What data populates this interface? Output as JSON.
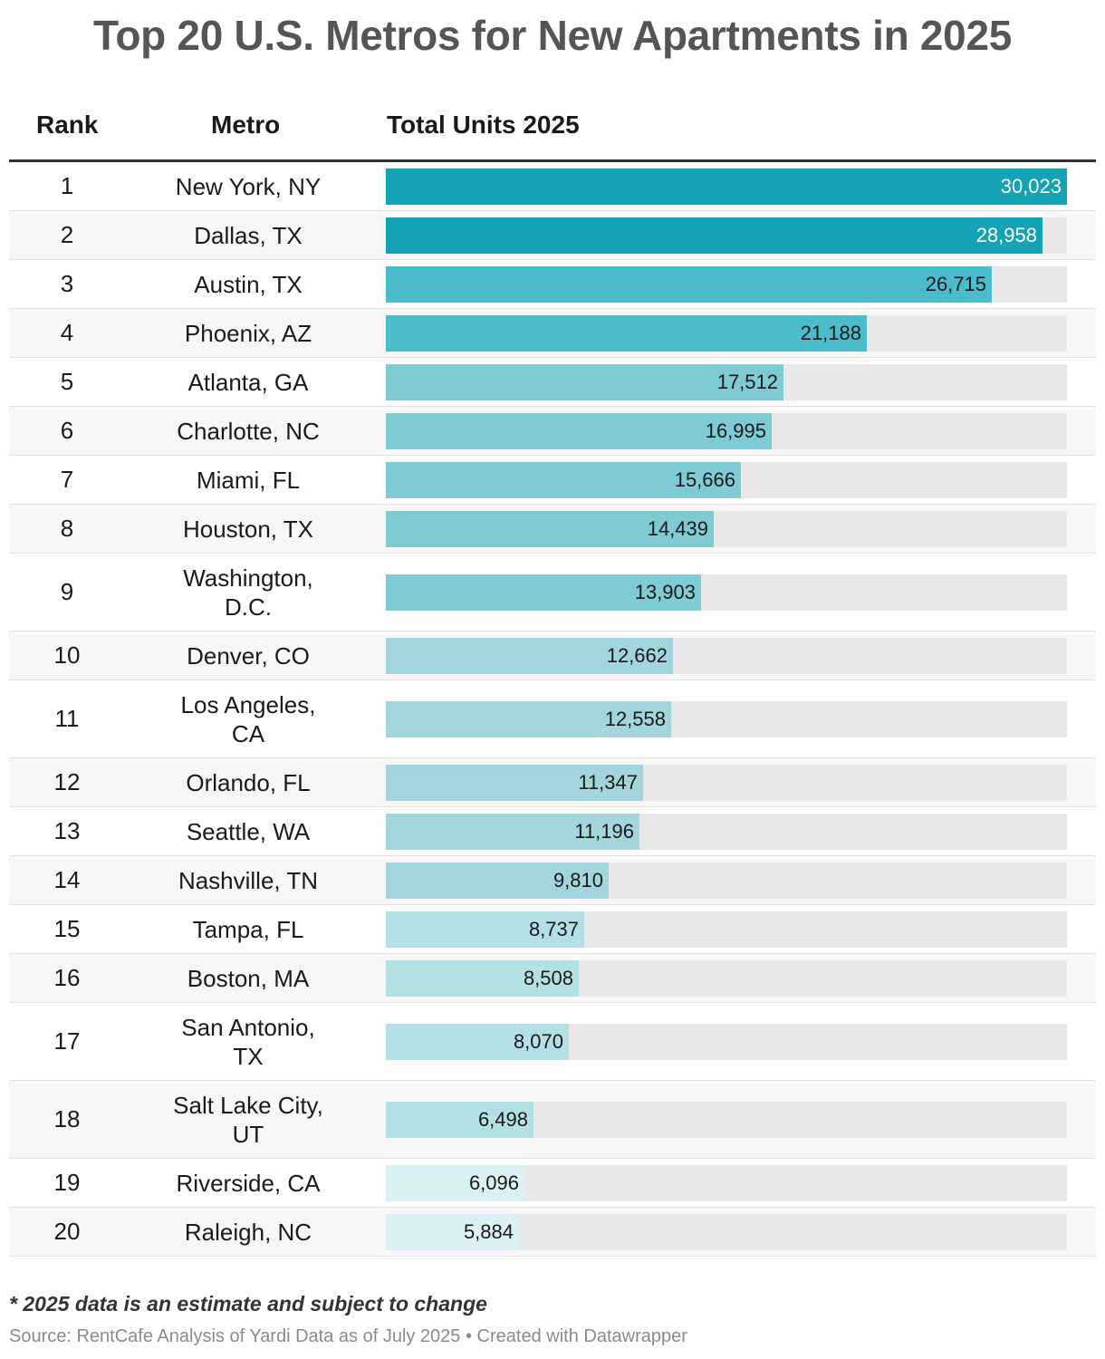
{
  "title": "Top 20 U.S. Metros for New Apartments in 2025",
  "columns": {
    "rank": "Rank",
    "metro": "Metro",
    "units": "Total Units 2025"
  },
  "footnote": "* 2025 data is an estimate and subject to change",
  "source": "Source: RentCafe Analysis of Yardi Data as of July 2025 • Created with Datawrapper",
  "colors": {
    "track": "#e8e8e8",
    "tier1": "#13a3b4",
    "tier2": "#4bbccb",
    "tier3": "#7ecbd4",
    "tier4": "#a3d6dc",
    "tier5": "#b3e0e4",
    "tier6": "#daf0f2"
  },
  "chart_data": {
    "type": "bar",
    "title": "Top 20 U.S. Metros for New Apartments in 2025",
    "xlabel": "Total Units 2025",
    "ylabel": "",
    "xlim": [
      0,
      30023
    ],
    "categories": [
      "New York, NY",
      "Dallas, TX",
      "Austin, TX",
      "Phoenix, AZ",
      "Atlanta, GA",
      "Charlotte, NC",
      "Miami, FL",
      "Houston, TX",
      "Washington, D.C.",
      "Denver, CO",
      "Los Angeles, CA",
      "Orlando, FL",
      "Seattle, WA",
      "Nashville, TN",
      "Tampa, FL",
      "Boston, MA",
      "San Antonio, TX",
      "Salt Lake City, UT",
      "Riverside, CA",
      "Raleigh, NC"
    ],
    "rows": [
      {
        "rank": "1",
        "metro_lines": [
          "New York, NY"
        ],
        "value": 30023,
        "label": "30,023",
        "tier": "tier1"
      },
      {
        "rank": "2",
        "metro_lines": [
          "Dallas, TX"
        ],
        "value": 28958,
        "label": "28,958",
        "tier": "tier1"
      },
      {
        "rank": "3",
        "metro_lines": [
          "Austin, TX"
        ],
        "value": 26715,
        "label": "26,715",
        "tier": "tier2"
      },
      {
        "rank": "4",
        "metro_lines": [
          "Phoenix, AZ"
        ],
        "value": 21188,
        "label": "21,188",
        "tier": "tier2"
      },
      {
        "rank": "5",
        "metro_lines": [
          "Atlanta, GA"
        ],
        "value": 17512,
        "label": "17,512",
        "tier": "tier3"
      },
      {
        "rank": "6",
        "metro_lines": [
          "Charlotte, NC"
        ],
        "value": 16995,
        "label": "16,995",
        "tier": "tier3"
      },
      {
        "rank": "7",
        "metro_lines": [
          "Miami, FL"
        ],
        "value": 15666,
        "label": "15,666",
        "tier": "tier3"
      },
      {
        "rank": "8",
        "metro_lines": [
          "Houston, TX"
        ],
        "value": 14439,
        "label": "14,439",
        "tier": "tier3"
      },
      {
        "rank": "9",
        "metro_lines": [
          "Washington,",
          "D.C."
        ],
        "value": 13903,
        "label": "13,903",
        "tier": "tier3"
      },
      {
        "rank": "10",
        "metro_lines": [
          "Denver, CO"
        ],
        "value": 12662,
        "label": "12,662",
        "tier": "tier4"
      },
      {
        "rank": "11",
        "metro_lines": [
          "Los Angeles,",
          "CA"
        ],
        "value": 12558,
        "label": "12,558",
        "tier": "tier4"
      },
      {
        "rank": "12",
        "metro_lines": [
          "Orlando, FL"
        ],
        "value": 11347,
        "label": "11,347",
        "tier": "tier4"
      },
      {
        "rank": "13",
        "metro_lines": [
          "Seattle, WA"
        ],
        "value": 11196,
        "label": "11,196",
        "tier": "tier4"
      },
      {
        "rank": "14",
        "metro_lines": [
          "Nashville, TN"
        ],
        "value": 9810,
        "label": "9,810",
        "tier": "tier4"
      },
      {
        "rank": "15",
        "metro_lines": [
          "Tampa, FL"
        ],
        "value": 8737,
        "label": "8,737",
        "tier": "tier5"
      },
      {
        "rank": "16",
        "metro_lines": [
          "Boston, MA"
        ],
        "value": 8508,
        "label": "8,508",
        "tier": "tier5"
      },
      {
        "rank": "17",
        "metro_lines": [
          "San Antonio,",
          "TX"
        ],
        "value": 8070,
        "label": "8,070",
        "tier": "tier5"
      },
      {
        "rank": "18",
        "metro_lines": [
          "Salt Lake City,",
          "UT"
        ],
        "value": 6498,
        "label": "6,498",
        "tier": "tier5"
      },
      {
        "rank": "19",
        "metro_lines": [
          "Riverside, CA"
        ],
        "value": 6096,
        "label": "6,096",
        "tier": "tier6"
      },
      {
        "rank": "20",
        "metro_lines": [
          "Raleigh, NC"
        ],
        "value": 5884,
        "label": "5,884",
        "tier": "tier6"
      }
    ]
  }
}
